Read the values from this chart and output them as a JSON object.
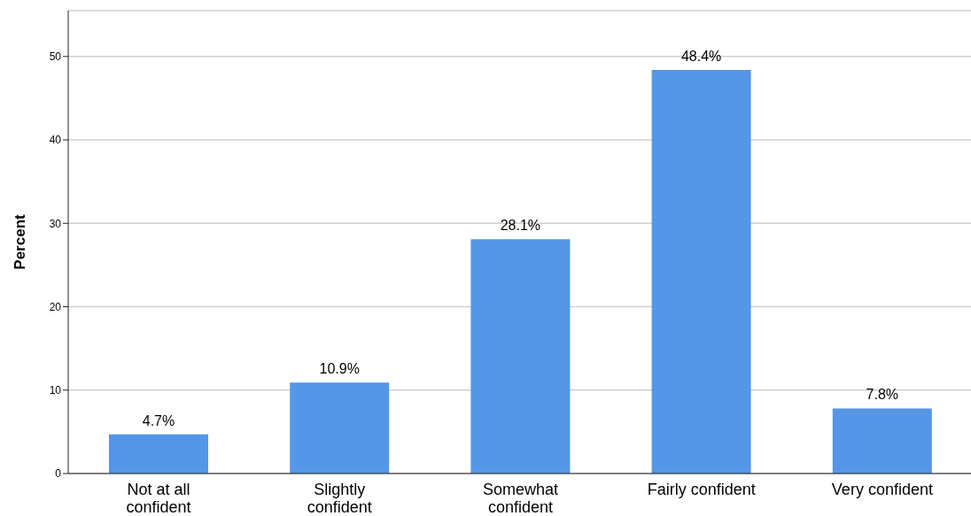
{
  "chart_data": {
    "type": "bar",
    "ylabel": "Percent",
    "categories": [
      "Not at all confident",
      "Slightly confident",
      "Somewhat confident",
      "Fairly confident",
      "Very confident"
    ],
    "values": [
      4.7,
      10.9,
      28.1,
      48.4,
      7.8
    ],
    "value_labels": [
      "4.7%",
      "10.9%",
      "28.1%",
      "48.4%",
      "7.8%"
    ],
    "color": "#5596e6",
    "ylim": [
      0,
      55.5
    ],
    "yticks": [
      0,
      10,
      20,
      30,
      40,
      50
    ],
    "grid": "y"
  }
}
